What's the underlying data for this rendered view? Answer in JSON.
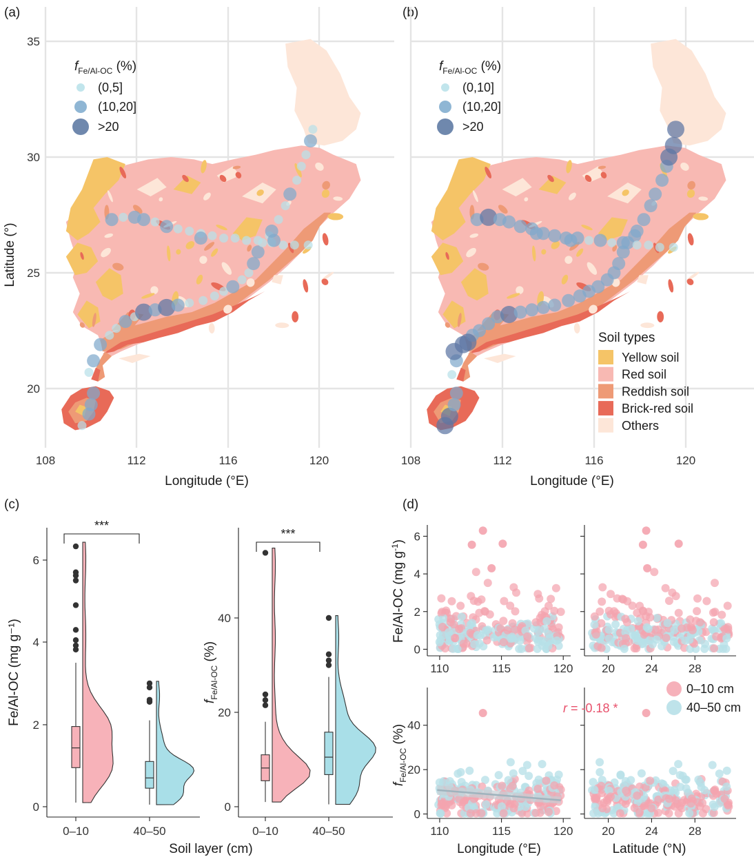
{
  "panels": {
    "a": {
      "label": "(a)",
      "legend_title": "f",
      "legend_title_sub": "Fe/Al-OC",
      "legend_title_unit": " (%)",
      "legend_items": [
        "(0,5]",
        "(10,20]",
        ">20"
      ]
    },
    "b": {
      "label": "(b)",
      "legend_title": "f",
      "legend_title_sub": "Fe/Al-OC",
      "legend_title_unit": " (%)",
      "legend_items": [
        "(0,10]",
        "(10,20]",
        ">20"
      ]
    },
    "c": {
      "label": "(c)"
    },
    "d": {
      "label": "(d)"
    }
  },
  "map": {
    "xlabel": "Longitude (°E)",
    "ylabel": "Latitude (°)",
    "xticks": [
      108,
      112,
      116,
      120
    ],
    "yticks": [
      20,
      25,
      30,
      35
    ],
    "xlim": [
      108,
      123.5
    ],
    "ylim": [
      17.4,
      36.2
    ],
    "soil_legend_title": "Soil types",
    "soil_types": [
      {
        "name": "Yellow soil",
        "color": "#f5c467"
      },
      {
        "name": "Red soil",
        "color": "#f8b9b3"
      },
      {
        "name": "Reddish soil",
        "color": "#ee9a76"
      },
      {
        "name": "Brick-red soil",
        "color": "#e86a58"
      },
      {
        "name": "Others",
        "color": "#fde6d8"
      }
    ]
  },
  "chart_data": [
    {
      "panel": "a",
      "type": "scatter",
      "title": "",
      "xlabel": "Longitude (°E)",
      "ylabel": "Latitude (°)",
      "xlim": [
        108,
        123.5
      ],
      "ylim": [
        17.4,
        36.2
      ],
      "size_classes": [
        "(0,5]",
        "(10,20]",
        ">20"
      ],
      "points": [
        [
          109.6,
          18.4,
          0
        ],
        [
          109.9,
          18.9,
          1
        ],
        [
          110.0,
          19.3,
          1
        ],
        [
          110.1,
          19.8,
          1
        ],
        [
          109.9,
          20.7,
          0
        ],
        [
          110.1,
          21.2,
          1
        ],
        [
          110.4,
          21.9,
          1
        ],
        [
          110.8,
          22.3,
          0
        ],
        [
          111.1,
          22.6,
          0
        ],
        [
          111.5,
          22.9,
          1
        ],
        [
          111.9,
          23.1,
          0
        ],
        [
          112.3,
          23.3,
          2
        ],
        [
          112.8,
          23.4,
          1
        ],
        [
          113.3,
          23.5,
          2
        ],
        [
          113.8,
          23.6,
          1
        ],
        [
          114.3,
          23.7,
          0
        ],
        [
          114.9,
          23.8,
          0
        ],
        [
          115.4,
          24.0,
          0
        ],
        [
          115.8,
          24.2,
          0
        ],
        [
          116.2,
          24.4,
          1
        ],
        [
          116.6,
          24.7,
          0
        ],
        [
          116.9,
          25.0,
          0
        ],
        [
          117.1,
          25.4,
          1
        ],
        [
          117.3,
          25.9,
          1
        ],
        [
          117.5,
          26.3,
          0
        ],
        [
          117.8,
          26.6,
          0
        ],
        [
          117.9,
          26.8,
          1
        ],
        [
          118.2,
          27.3,
          0
        ],
        [
          118.5,
          27.9,
          0
        ],
        [
          118.7,
          28.4,
          1
        ],
        [
          119.0,
          29.0,
          0
        ],
        [
          119.2,
          29.6,
          0
        ],
        [
          119.4,
          30.1,
          0
        ],
        [
          119.6,
          30.7,
          1
        ],
        [
          119.7,
          31.2,
          0
        ],
        [
          110.9,
          27.3,
          1
        ],
        [
          111.4,
          27.4,
          0
        ],
        [
          111.9,
          27.4,
          1
        ],
        [
          112.3,
          27.3,
          1
        ],
        [
          112.8,
          27.2,
          0
        ],
        [
          113.3,
          27.0,
          1
        ],
        [
          113.8,
          26.9,
          0
        ],
        [
          114.3,
          26.8,
          0
        ],
        [
          114.8,
          26.7,
          0
        ],
        [
          115.3,
          26.6,
          0
        ],
        [
          115.8,
          26.5,
          0
        ],
        [
          116.3,
          26.5,
          0
        ],
        [
          116.8,
          26.4,
          0
        ],
        [
          117.3,
          26.4,
          0
        ],
        [
          117.9,
          26.3,
          0
        ],
        [
          118.4,
          26.2,
          0
        ],
        [
          118.9,
          26.2,
          0
        ],
        [
          119.5,
          26.2,
          0
        ],
        [
          114.8,
          26.5,
          1
        ],
        [
          118.0,
          26.4,
          1
        ]
      ]
    },
    {
      "panel": "b",
      "type": "scatter",
      "title": "",
      "xlabel": "Longitude (°E)",
      "ylabel": "",
      "xlim": [
        108,
        123.5
      ],
      "ylim": [
        17.4,
        36.2
      ],
      "size_classes": [
        "(0,10]",
        "(10,20]",
        ">20"
      ],
      "points": [
        [
          109.5,
          18.4,
          2
        ],
        [
          109.7,
          18.8,
          2
        ],
        [
          109.9,
          19.3,
          1
        ],
        [
          110.0,
          19.8,
          1
        ],
        [
          109.8,
          20.6,
          0
        ],
        [
          110.0,
          21.2,
          1
        ],
        [
          110.3,
          21.9,
          2
        ],
        [
          110.7,
          22.3,
          1
        ],
        [
          111.0,
          22.5,
          1
        ],
        [
          111.4,
          22.8,
          1
        ],
        [
          111.8,
          23.1,
          1
        ],
        [
          112.3,
          23.2,
          2
        ],
        [
          112.8,
          23.3,
          1
        ],
        [
          113.3,
          23.4,
          1
        ],
        [
          113.8,
          23.5,
          1
        ],
        [
          114.3,
          23.6,
          1
        ],
        [
          114.9,
          23.8,
          1
        ],
        [
          115.4,
          24.0,
          1
        ],
        [
          115.8,
          24.2,
          1
        ],
        [
          116.2,
          24.4,
          1
        ],
        [
          116.6,
          24.7,
          1
        ],
        [
          116.9,
          25.0,
          1
        ],
        [
          117.1,
          25.4,
          1
        ],
        [
          117.3,
          25.9,
          1
        ],
        [
          117.5,
          26.3,
          1
        ],
        [
          117.8,
          26.6,
          1
        ],
        [
          117.9,
          26.8,
          1
        ],
        [
          118.2,
          27.3,
          1
        ],
        [
          118.5,
          27.9,
          1
        ],
        [
          118.7,
          28.4,
          1
        ],
        [
          119.0,
          29.0,
          1
        ],
        [
          119.2,
          29.6,
          1
        ],
        [
          119.3,
          30.0,
          2
        ],
        [
          119.5,
          30.5,
          2
        ],
        [
          119.6,
          31.2,
          2
        ],
        [
          109.9,
          21.6,
          2
        ],
        [
          110.5,
          22.0,
          2
        ],
        [
          110.9,
          27.3,
          1
        ],
        [
          111.4,
          27.4,
          2
        ],
        [
          111.9,
          27.3,
          1
        ],
        [
          112.3,
          27.2,
          1
        ],
        [
          112.8,
          27.0,
          1
        ],
        [
          113.3,
          26.9,
          1
        ],
        [
          113.8,
          26.7,
          1
        ],
        [
          114.3,
          26.6,
          1
        ],
        [
          114.8,
          26.5,
          1
        ],
        [
          115.3,
          26.5,
          1
        ],
        [
          115.8,
          26.4,
          0
        ],
        [
          116.3,
          26.4,
          1
        ],
        [
          116.8,
          26.3,
          0
        ],
        [
          117.3,
          26.3,
          1
        ],
        [
          117.9,
          26.2,
          0
        ],
        [
          118.4,
          26.2,
          0
        ],
        [
          118.9,
          26.1,
          0
        ],
        [
          119.5,
          26.1,
          0
        ],
        [
          113.5,
          26.7,
          1
        ],
        [
          115.0,
          26.4,
          1
        ]
      ]
    },
    {
      "panel": "c-left",
      "type": "violin-box",
      "title": "",
      "xlabel": "Soil layer (cm)",
      "ylabel": "Fe/Al-OC (mg g⁻¹)",
      "categories": [
        "0–10",
        "40–50"
      ],
      "ylim": [
        -0.3,
        6.8
      ],
      "yticks": [
        0,
        2,
        4,
        6
      ],
      "significance": "***",
      "boxes": [
        {
          "name": "0–10",
          "min": 0.1,
          "q1": 0.95,
          "median": 1.43,
          "q3": 1.95,
          "max": 3.5,
          "outliers": [
            3.82,
            3.92,
            4.05,
            4.3,
            4.9,
            5.5,
            5.62,
            5.7,
            6.33
          ],
          "color": "#f7b2b9"
        },
        {
          "name": "40–50",
          "min": 0.05,
          "q1": 0.45,
          "median": 0.7,
          "q3": 1.1,
          "max": 2.1,
          "outliers": [
            2.55,
            2.6,
            2.9,
            3.0
          ],
          "color": "#a9dfe8"
        }
      ]
    },
    {
      "panel": "c-right",
      "type": "violin-box",
      "title": "",
      "xlabel": "Soil layer (cm)",
      "ylabel": "f Fe/Al-OC (%)",
      "categories": [
        "0–10",
        "40–50"
      ],
      "ylim": [
        -1.5,
        57
      ],
      "yticks": [
        0,
        20,
        40
      ],
      "significance": "***",
      "boxes": [
        {
          "name": "0–10",
          "min": 1.0,
          "q1": 5.5,
          "median": 8.2,
          "q3": 11.0,
          "max": 18.0,
          "outliers": [
            21.5,
            22.6,
            23.8,
            53.8
          ],
          "color": "#f7b2b9"
        },
        {
          "name": "40–50",
          "min": 0.5,
          "q1": 6.8,
          "median": 10.5,
          "q3": 15.8,
          "max": 27.5,
          "outliers": [
            30.0,
            31.0,
            32.3,
            40.0
          ],
          "color": "#a9dfe8"
        }
      ]
    },
    {
      "panel": "d",
      "type": "scatter",
      "title": "",
      "xlabel": "Longitude (°E) | Latitude (°N)",
      "ylabel": "Fe/Al-OC (mg g⁻¹) | f Fe/Al-OC (%)",
      "legend_position": "right",
      "series_names": [
        "0–10 cm",
        "40–50 cm"
      ],
      "colors": [
        "#f4a3ae",
        "#b7e0e8"
      ],
      "annotation": {
        "text": "r = -0.18 *",
        "r": -0.18,
        "subplot": "fraction-vs-longitude"
      },
      "subplots": {
        "fe_vs_lon": {
          "xlim": [
            109.0,
            120.6
          ],
          "ylim": [
            -0.35,
            6.6
          ],
          "xticks": [
            110,
            115,
            120
          ],
          "yticks": [
            0,
            2,
            4,
            6
          ]
        },
        "fe_vs_lat": {
          "xlim": [
            17.8,
            31.8
          ],
          "ylim": [
            -0.35,
            6.6
          ],
          "xticks": [
            20,
            24,
            28
          ],
          "yticks": [
            0,
            2,
            4,
            6
          ]
        },
        "f_vs_lon": {
          "xlim": [
            109.0,
            120.6
          ],
          "ylim": [
            -2,
            57
          ],
          "xticks": [
            110,
            115,
            120
          ],
          "yticks": [
            0,
            20,
            40
          ]
        },
        "f_vs_lat": {
          "xlim": [
            17.8,
            31.8
          ],
          "ylim": [
            -2,
            57
          ],
          "xticks": [
            20,
            24,
            28
          ],
          "yticks": [
            0,
            20,
            40
          ]
        }
      },
      "trend_line": {
        "x": [
          109.8,
          119.8
        ],
        "y": [
          10.8,
          6.2
        ]
      },
      "highlight_points": [
        {
          "series": "0–10 cm",
          "lon": 113.5,
          "lat": 23.5,
          "fe": 6.3
        },
        {
          "series": "0–10 cm",
          "lon": 115.1,
          "lat": 26.5,
          "fe": 5.6
        },
        {
          "series": "0–10 cm",
          "lon": 112.6,
          "lat": 23.2,
          "fe": 5.55
        },
        {
          "series": "0–10 cm",
          "lon": 114.2,
          "lat": 23.6,
          "fe": 4.3
        },
        {
          "series": "0–10 cm",
          "lon": 113.5,
          "lat": 23.5,
          "f": 45.5
        }
      ]
    }
  ]
}
